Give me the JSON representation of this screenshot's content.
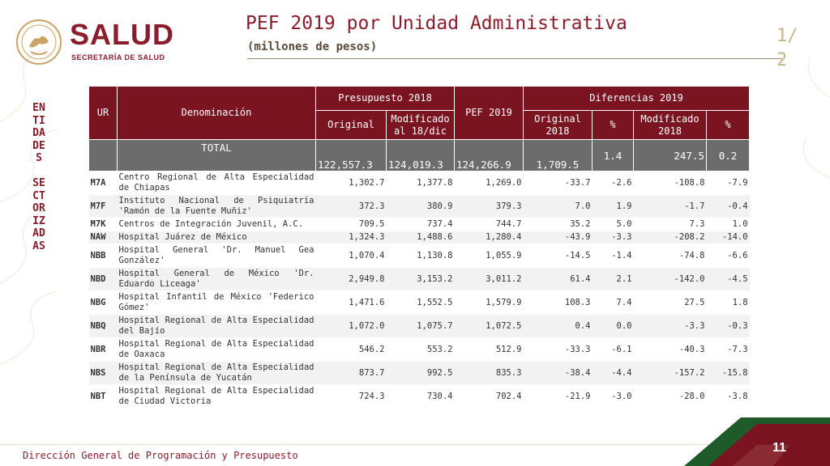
{
  "header": {
    "brand": "SALUD",
    "brand_sub": "SECRETARÍA DE SALUD",
    "title": "PEF 2019 por Unidad Administrativa",
    "subtitle": "(millones de pesos)",
    "pager": "1/2"
  },
  "side_label": "ENTIDADES SECTORIZADAS",
  "table": {
    "headers": {
      "ur": "UR",
      "denominacion": "Denominación",
      "presupuesto_2018": "Presupuesto 2018",
      "original": "Original",
      "modificado": "Modificado al 18/dic",
      "pef_2019": "PEF 2019",
      "diferencias_2019": "Diferencias 2019",
      "original_2018": "Original 2018",
      "pct1": "%",
      "modificado_2018": "Modificado 2018",
      "pct2": "%"
    },
    "total": {
      "label": "TOTAL",
      "original": "122,557.3",
      "modificado": "124,019.3",
      "pef": "124,266.9",
      "dif_orig": "1,709.5",
      "pct1": "1.4",
      "dif_mod": "247.5",
      "pct2": "0.2"
    },
    "rows": [
      {
        "ur": "M7A",
        "den": "Centro Regional de Alta Especialidad de Chiapas",
        "orig": "1,302.7",
        "mod": "1,377.8",
        "pef": "1,269.0",
        "d1": "-33.7",
        "p1": "-2.6",
        "d2": "-108.8",
        "p2": "-7.9"
      },
      {
        "ur": "M7F",
        "den": "Instituto Nacional de Psiquiatría 'Ramón de la Fuente Muñiz'",
        "orig": "372.3",
        "mod": "380.9",
        "pef": "379.3",
        "d1": "7.0",
        "p1": "1.9",
        "d2": "-1.7",
        "p2": "-0.4"
      },
      {
        "ur": "M7K",
        "den": "Centros de Integración Juvenil, A.C.",
        "orig": "709.5",
        "mod": "737.4",
        "pef": "744.7",
        "d1": "35.2",
        "p1": "5.0",
        "d2": "7.3",
        "p2": "1.0"
      },
      {
        "ur": "NAW",
        "den": "Hospital Juárez de México",
        "orig": "1,324.3",
        "mod": "1,488.6",
        "pef": "1,280.4",
        "d1": "-43.9",
        "p1": "-3.3",
        "d2": "-208.2",
        "p2": "-14.0"
      },
      {
        "ur": "NBB",
        "den": "Hospital General 'Dr. Manuel Gea González'",
        "orig": "1,070.4",
        "mod": "1,130.8",
        "pef": "1,055.9",
        "d1": "-14.5",
        "p1": "-1.4",
        "d2": "-74.8",
        "p2": "-6.6"
      },
      {
        "ur": "NBD",
        "den": "Hospital General de México 'Dr. Eduardo Liceaga'",
        "orig": "2,949.8",
        "mod": "3,153.2",
        "pef": "3,011.2",
        "d1": "61.4",
        "p1": "2.1",
        "d2": "-142.0",
        "p2": "-4.5"
      },
      {
        "ur": "NBG",
        "den": "Hospital Infantil de México 'Federico Gómez'",
        "orig": "1,471.6",
        "mod": "1,552.5",
        "pef": "1,579.9",
        "d1": "108.3",
        "p1": "7.4",
        "d2": "27.5",
        "p2": "1.8"
      },
      {
        "ur": "NBQ",
        "den": "Hospital Regional de Alta Especialidad del Bajío",
        "orig": "1,072.0",
        "mod": "1,075.7",
        "pef": "1,072.5",
        "d1": "0.4",
        "p1": "0.0",
        "d2": "-3.3",
        "p2": "-0.3"
      },
      {
        "ur": "NBR",
        "den": "Hospital Regional de Alta Especialidad de Oaxaca",
        "orig": "546.2",
        "mod": "553.2",
        "pef": "512.9",
        "d1": "-33.3",
        "p1": "-6.1",
        "d2": "-40.3",
        "p2": "-7.3"
      },
      {
        "ur": "NBS",
        "den": "Hospital Regional de Alta Especialidad de la Península de Yucatán",
        "orig": "873.7",
        "mod": "992.5",
        "pef": "835.3",
        "d1": "-38.4",
        "p1": "-4.4",
        "d2": "-157.2",
        "p2": "-15.8"
      },
      {
        "ur": "NBT",
        "den": "Hospital Regional de Alta Especialidad de Ciudad Victoria",
        "orig": "724.3",
        "mod": "730.4",
        "pef": "702.4",
        "d1": "-21.9",
        "p1": "-3.0",
        "d2": "-28.0",
        "p2": "-3.8"
      }
    ]
  },
  "footer": {
    "text": "Dirección General de Programación y Presupuesto",
    "page": "11"
  },
  "colors": {
    "brand": "#8a1c2b",
    "header_bg": "#7a1420",
    "total_bg": "#6c6c6c",
    "corner_green": "#1f5a2a",
    "corner_red": "#7a1420"
  }
}
